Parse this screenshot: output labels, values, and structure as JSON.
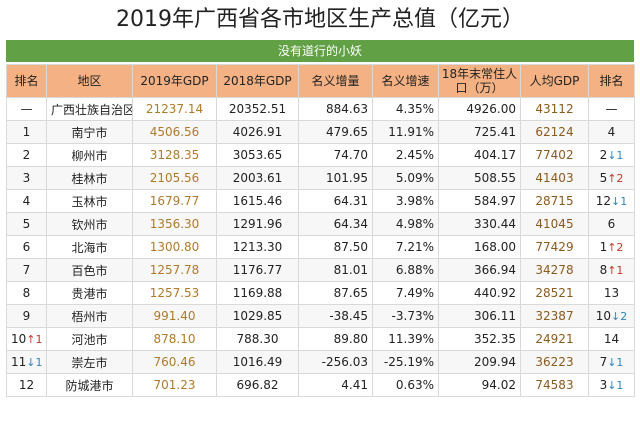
{
  "title": "2019年广西省各市地区生产总值（亿元）",
  "banner": "没有道行的小妖",
  "columns": [
    "排名",
    "地区",
    "2019年GDP",
    "2018年GDP",
    "名义增量",
    "名义增速",
    "18年末常住人口（万）",
    "人均GDP",
    "排名"
  ],
  "rows": [
    {
      "rank": "—",
      "region": "广西壮族自治区",
      "gdp2019": "21237.14",
      "gdp2018": "20352.51",
      "increase": "884.63",
      "growth": "4.35%",
      "population": "4926.00",
      "per_capita": "43112",
      "pc_rank": "—",
      "rank_change": "",
      "rank_dir": "",
      "pc_change": "",
      "pc_dir": ""
    },
    {
      "rank": "1",
      "region": "南宁市",
      "gdp2019": "4506.56",
      "gdp2018": "4026.91",
      "increase": "479.65",
      "growth": "11.91%",
      "population": "725.41",
      "per_capita": "62124",
      "pc_rank": "4",
      "rank_change": "",
      "rank_dir": "",
      "pc_change": "",
      "pc_dir": ""
    },
    {
      "rank": "2",
      "region": "柳州市",
      "gdp2019": "3128.35",
      "gdp2018": "3053.65",
      "increase": "74.70",
      "growth": "2.45%",
      "population": "404.17",
      "per_capita": "77402",
      "pc_rank": "2",
      "rank_change": "",
      "rank_dir": "",
      "pc_change": "↓1",
      "pc_dir": "down"
    },
    {
      "rank": "3",
      "region": "桂林市",
      "gdp2019": "2105.56",
      "gdp2018": "2003.61",
      "increase": "101.95",
      "growth": "5.09%",
      "population": "508.55",
      "per_capita": "41403",
      "pc_rank": "5",
      "rank_change": "",
      "rank_dir": "",
      "pc_change": "↑2",
      "pc_dir": "up"
    },
    {
      "rank": "4",
      "region": "玉林市",
      "gdp2019": "1679.77",
      "gdp2018": "1615.46",
      "increase": "64.31",
      "growth": "3.98%",
      "population": "584.97",
      "per_capita": "28715",
      "pc_rank": "12",
      "rank_change": "",
      "rank_dir": "",
      "pc_change": "↓1",
      "pc_dir": "down"
    },
    {
      "rank": "5",
      "region": "钦州市",
      "gdp2019": "1356.30",
      "gdp2018": "1291.96",
      "increase": "64.34",
      "growth": "4.98%",
      "population": "330.44",
      "per_capita": "41045",
      "pc_rank": "6",
      "rank_change": "",
      "rank_dir": "",
      "pc_change": "",
      "pc_dir": ""
    },
    {
      "rank": "6",
      "region": "北海市",
      "gdp2019": "1300.80",
      "gdp2018": "1213.30",
      "increase": "87.50",
      "growth": "7.21%",
      "population": "168.00",
      "per_capita": "77429",
      "pc_rank": "1",
      "rank_change": "",
      "rank_dir": "",
      "pc_change": "↑2",
      "pc_dir": "up"
    },
    {
      "rank": "7",
      "region": "百色市",
      "gdp2019": "1257.78",
      "gdp2018": "1176.77",
      "increase": "81.01",
      "growth": "6.88%",
      "population": "366.94",
      "per_capita": "34278",
      "pc_rank": "8",
      "rank_change": "",
      "rank_dir": "",
      "pc_change": "↑1",
      "pc_dir": "up"
    },
    {
      "rank": "8",
      "region": "贵港市",
      "gdp2019": "1257.53",
      "gdp2018": "1169.88",
      "increase": "87.65",
      "growth": "7.49%",
      "population": "440.92",
      "per_capita": "28521",
      "pc_rank": "13",
      "rank_change": "",
      "rank_dir": "",
      "pc_change": "",
      "pc_dir": ""
    },
    {
      "rank": "9",
      "region": "梧州市",
      "gdp2019": "991.40",
      "gdp2018": "1029.85",
      "increase": "-38.45",
      "growth": "-3.73%",
      "population": "306.11",
      "per_capita": "32387",
      "pc_rank": "10",
      "rank_change": "",
      "rank_dir": "",
      "pc_change": "↓2",
      "pc_dir": "down"
    },
    {
      "rank": "10",
      "region": "河池市",
      "gdp2019": "878.10",
      "gdp2018": "788.30",
      "increase": "89.80",
      "growth": "11.39%",
      "population": "352.35",
      "per_capita": "24921",
      "pc_rank": "14",
      "rank_change": "↑1",
      "rank_dir": "up",
      "pc_change": "",
      "pc_dir": ""
    },
    {
      "rank": "11",
      "region": "崇左市",
      "gdp2019": "760.46",
      "gdp2018": "1016.49",
      "increase": "-256.03",
      "growth": "-25.19%",
      "population": "209.94",
      "per_capita": "36223",
      "pc_rank": "7",
      "rank_change": "↓1",
      "rank_dir": "down",
      "pc_change": "↓1",
      "pc_dir": "down"
    },
    {
      "rank": "12",
      "region": "防城港市",
      "gdp2019": "701.23",
      "gdp2018": "696.82",
      "increase": "4.41",
      "growth": "0.63%",
      "population": "94.02",
      "per_capita": "74583",
      "pc_rank": "3",
      "rank_change": "",
      "rank_dir": "",
      "pc_change": "↓1",
      "pc_dir": "down"
    }
  ]
}
